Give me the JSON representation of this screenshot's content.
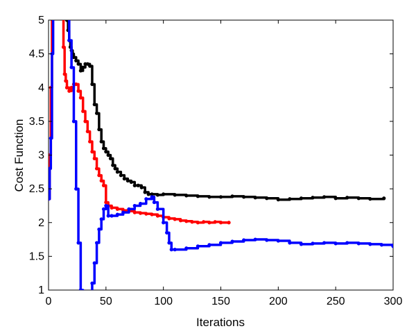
{
  "chart_data": {
    "type": "line",
    "title": "",
    "xlabel": "Iterations",
    "ylabel": "Cost Function",
    "xlim": [
      0,
      300
    ],
    "ylim": [
      1,
      5
    ],
    "x_ticks": [
      0,
      50,
      100,
      150,
      200,
      250,
      300
    ],
    "y_ticks": [
      1,
      1.5,
      2,
      2.5,
      3,
      3.5,
      4,
      4.5,
      5
    ],
    "x_tick_labels": [
      "0",
      "50",
      "100",
      "150",
      "200",
      "250",
      "300"
    ],
    "y_tick_labels": [
      "1",
      "1.5",
      "2",
      "2.5",
      "3",
      "3.5",
      "4",
      "4.5",
      "5"
    ],
    "grid": false,
    "legend": "none",
    "series": [
      {
        "color": "#000000",
        "x": [
          15,
          16,
          17,
          18,
          19,
          20,
          21,
          22,
          24,
          26,
          28,
          30,
          32,
          34,
          36,
          38,
          40,
          42,
          44,
          46,
          48,
          50,
          52,
          54,
          56,
          58,
          60,
          63,
          66,
          69,
          72,
          75,
          78,
          81,
          84,
          87,
          90,
          95,
          100,
          110,
          120,
          130,
          140,
          150,
          160,
          170,
          180,
          190,
          200,
          210,
          220,
          230,
          240,
          250,
          260,
          270,
          280,
          292
        ],
        "y": [
          5.2,
          5.0,
          4.85,
          4.7,
          4.6,
          4.55,
          4.5,
          4.45,
          4.4,
          4.35,
          4.25,
          4.3,
          4.35,
          4.35,
          4.32,
          4.05,
          3.75,
          3.62,
          3.38,
          3.2,
          3.1,
          3.05,
          3.0,
          2.95,
          2.85,
          2.8,
          2.75,
          2.7,
          2.65,
          2.62,
          2.6,
          2.55,
          2.55,
          2.52,
          2.45,
          2.42,
          2.42,
          2.41,
          2.42,
          2.41,
          2.4,
          2.39,
          2.38,
          2.38,
          2.39,
          2.38,
          2.37,
          2.36,
          2.34,
          2.35,
          2.36,
          2.37,
          2.38,
          2.36,
          2.37,
          2.36,
          2.35,
          2.36
        ]
      },
      {
        "color": "#ff0000",
        "x": [
          0,
          1,
          2,
          3,
          12,
          13,
          14,
          15,
          16,
          18,
          20,
          22,
          24,
          26,
          28,
          30,
          32,
          34,
          36,
          38,
          40,
          42,
          44,
          46,
          48,
          50,
          52,
          55,
          60,
          65,
          70,
          75,
          80,
          85,
          90,
          95,
          100,
          105,
          110,
          115,
          120,
          125,
          130,
          135,
          140,
          145,
          150,
          157
        ],
        "y": [
          2.35,
          3.0,
          4.0,
          5.2,
          5.2,
          4.6,
          4.2,
          4.1,
          4.0,
          3.95,
          4.0,
          4.05,
          4.05,
          3.95,
          3.85,
          3.65,
          3.5,
          3.35,
          3.2,
          3.05,
          2.95,
          2.8,
          2.7,
          2.62,
          2.55,
          2.3,
          2.25,
          2.22,
          2.2,
          2.18,
          2.17,
          2.15,
          2.14,
          2.13,
          2.12,
          2.1,
          2.08,
          2.06,
          2.05,
          2.03,
          2.02,
          2.01,
          2.0,
          2.01,
          2.0,
          2.01,
          2.0,
          2.0
        ]
      },
      {
        "color": "#0000ff",
        "x": [
          0,
          1,
          2,
          3,
          4,
          5,
          10,
          15,
          18,
          20,
          22,
          24,
          26,
          28,
          30,
          36,
          38,
          40,
          42,
          44,
          46,
          48,
          50,
          52,
          55,
          60,
          65,
          70,
          75,
          80,
          85,
          90,
          92,
          95,
          100,
          103,
          105,
          107,
          110,
          120,
          130,
          140,
          150,
          160,
          170,
          180,
          190,
          200,
          210,
          220,
          230,
          240,
          250,
          260,
          270,
          280,
          290,
          300
        ],
        "y": [
          2.35,
          2.8,
          3.25,
          4.5,
          5.2,
          5.2,
          5.2,
          5.2,
          4.7,
          4.3,
          3.5,
          2.5,
          1.7,
          1.0,
          0.5,
          0.5,
          1.1,
          1.4,
          1.7,
          1.9,
          2.05,
          2.2,
          2.25,
          2.1,
          2.1,
          2.12,
          2.15,
          2.2,
          2.25,
          2.28,
          2.35,
          2.38,
          2.3,
          2.2,
          2.0,
          1.85,
          1.7,
          1.6,
          1.6,
          1.62,
          1.65,
          1.67,
          1.7,
          1.72,
          1.74,
          1.75,
          1.74,
          1.73,
          1.7,
          1.68,
          1.69,
          1.7,
          1.69,
          1.7,
          1.69,
          1.68,
          1.67,
          1.65
        ]
      }
    ]
  }
}
